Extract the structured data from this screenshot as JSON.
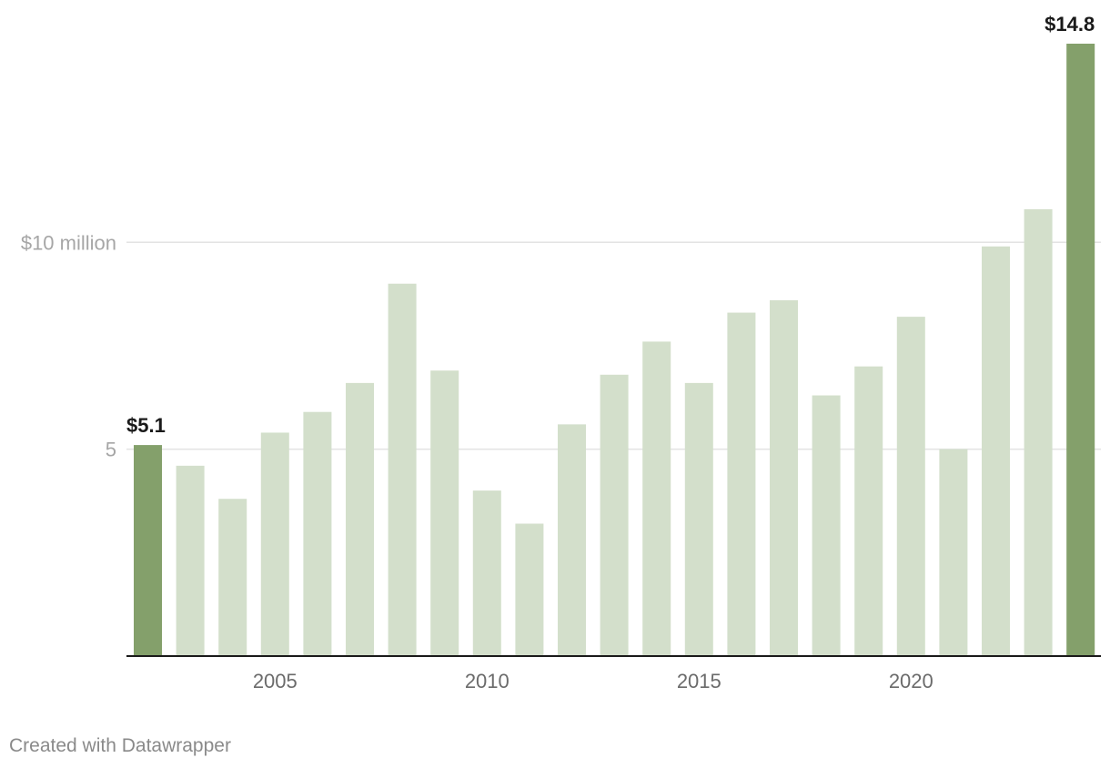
{
  "chart_data": {
    "type": "bar",
    "categories": [
      "2002",
      "2003",
      "2004",
      "2005",
      "2006",
      "2007",
      "2008",
      "2009",
      "2010",
      "2011",
      "2012",
      "2013",
      "2014",
      "2015",
      "2016",
      "2017",
      "2018",
      "2019",
      "2020",
      "2021",
      "2022",
      "2023",
      "2024"
    ],
    "values": [
      5.1,
      4.6,
      3.8,
      5.4,
      5.9,
      6.6,
      9.0,
      6.9,
      4.0,
      3.2,
      5.6,
      6.8,
      7.6,
      6.6,
      8.3,
      8.6,
      6.3,
      7.0,
      8.2,
      5.0,
      9.9,
      10.8,
      14.8
    ],
    "ylim": [
      0,
      14.8
    ],
    "y_ticks": [
      {
        "value": 5,
        "label": "5"
      },
      {
        "value": 10,
        "label": "$10 million"
      }
    ],
    "x_ticks": [
      {
        "category": "2005",
        "label": "2005"
      },
      {
        "category": "2010",
        "label": "2010"
      },
      {
        "category": "2015",
        "label": "2015"
      },
      {
        "category": "2020",
        "label": "2020"
      }
    ],
    "value_labels": [
      {
        "category": "2002",
        "text": "$5.1"
      },
      {
        "category": "2024",
        "text": "$14.8"
      }
    ],
    "highlighted_categories": [
      "2002",
      "2024"
    ],
    "grid": true,
    "colors": {
      "highlight": "#84a06b",
      "bar": "#d3dfcb",
      "grid": "#e3e3e3",
      "axis": "#1a1a1a"
    }
  },
  "footer": {
    "credit": "Created with Datawrapper"
  }
}
